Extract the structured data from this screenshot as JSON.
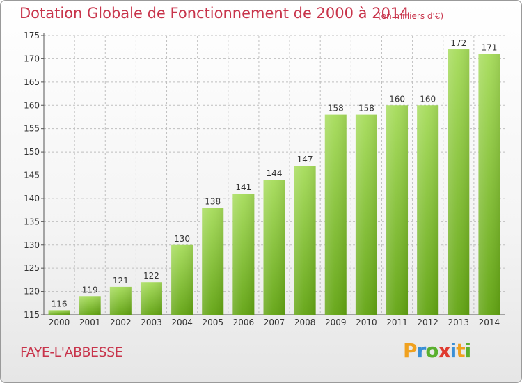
{
  "title": "Dotation Globale de Fonctionnement de 2000 à 2014",
  "subtitle": "(en milliers d'€)",
  "commune": "FAYE-L'ABBESSE",
  "logo": {
    "text": "Proxiti",
    "letters": [
      {
        "ch": "P",
        "color": "#f0a11f"
      },
      {
        "ch": "r",
        "color": "#3a8fd6"
      },
      {
        "ch": "o",
        "color": "#5ab02e"
      },
      {
        "ch": "x",
        "color": "#e03a2f"
      },
      {
        "ch": "i",
        "color": "#3a8fd6"
      },
      {
        "ch": "t",
        "color": "#f0a11f"
      },
      {
        "ch": "i",
        "color": "#5ab02e"
      }
    ]
  },
  "colors": {
    "title": "#c8344b",
    "bar_top": "#a6dc5a",
    "bar_bottom": "#62a412",
    "grid": "#bfbfbf",
    "axis_text": "#333333"
  },
  "chart_data": {
    "type": "bar",
    "title": "Dotation Globale de Fonctionnement de 2000 à 2014",
    "ylabel": "en milliers d'€",
    "xlabel": "",
    "categories": [
      "2000",
      "2001",
      "2002",
      "2003",
      "2004",
      "2005",
      "2006",
      "2007",
      "2008",
      "2009",
      "2010",
      "2011",
      "2012",
      "2013",
      "2014"
    ],
    "values": [
      116,
      119,
      121,
      122,
      130,
      138,
      141,
      144,
      147,
      158,
      158,
      160,
      160,
      172,
      171
    ],
    "ylim": [
      115,
      175
    ],
    "yticks": [
      115,
      120,
      125,
      130,
      135,
      140,
      145,
      150,
      155,
      160,
      165,
      170,
      175
    ],
    "grid": true
  }
}
